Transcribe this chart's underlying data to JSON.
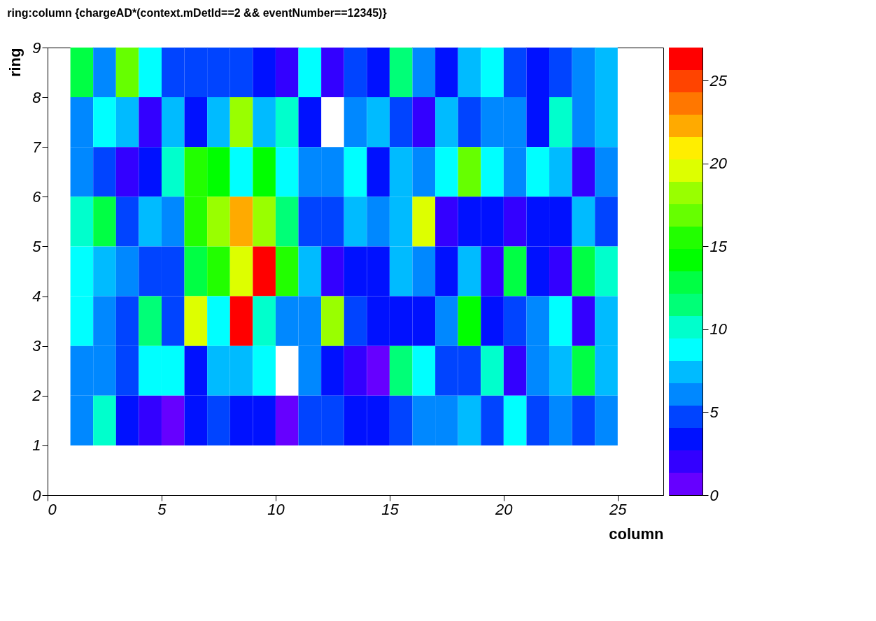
{
  "chart_data": {
    "type": "heatmap",
    "title": "ring:column {chargeAD*(context.mDetId==2 && eventNumber==12345)}",
    "xlabel": "column",
    "ylabel": "ring",
    "x": [
      1.5,
      2.5,
      3.5,
      4.5,
      5.5,
      6.5,
      7.5,
      8.5,
      9.5,
      10.5,
      11.5,
      12.5,
      13.5,
      14.5,
      15.5,
      16.5,
      17.5,
      18.5,
      19.5,
      20.5,
      21.5,
      22.5,
      23.5,
      24.5
    ],
    "y": [
      8.5,
      7.5,
      6.5,
      5.5,
      4.5,
      3.5,
      2.5,
      1.5
    ],
    "cells": [
      [
        13,
        6,
        17,
        9,
        5,
        5,
        5,
        5,
        3,
        2,
        9,
        2,
        5,
        3,
        11,
        6,
        3,
        7,
        9,
        5,
        3,
        5,
        6,
        7
      ],
      [
        6,
        9,
        7,
        2,
        7,
        3,
        7,
        18,
        7,
        10,
        3,
        null,
        6,
        7,
        5,
        2,
        7,
        5,
        6,
        6,
        3,
        10,
        6,
        7
      ],
      [
        6,
        5,
        2,
        3,
        10,
        15,
        14,
        9,
        14,
        9,
        6,
        6,
        9,
        3,
        7,
        6,
        9,
        17,
        9,
        6,
        9,
        7,
        2,
        6
      ],
      [
        10,
        13,
        5,
        7,
        6,
        15,
        18,
        22,
        18,
        11,
        5,
        5,
        7,
        6,
        7,
        20,
        2,
        3,
        3,
        2,
        3,
        3,
        7,
        5
      ],
      [
        9,
        7,
        6,
        5,
        5,
        13,
        15,
        20,
        27,
        15,
        7,
        2,
        3,
        3,
        7,
        6,
        3,
        7,
        2,
        13,
        3,
        2,
        13,
        10
      ],
      [
        9,
        6,
        5,
        11,
        5,
        20,
        9,
        26,
        10,
        6,
        6,
        18,
        5,
        3,
        3,
        3,
        6,
        14,
        3,
        5,
        6,
        9,
        2,
        7
      ],
      [
        6,
        6,
        5,
        9,
        9,
        3,
        7,
        7,
        9,
        null,
        6,
        3,
        2,
        1,
        11,
        9,
        5,
        5,
        10,
        2,
        6,
        7,
        13,
        7
      ],
      [
        6,
        10,
        3,
        2,
        1,
        3,
        5,
        3,
        3,
        1,
        5,
        5,
        3,
        3,
        5,
        6,
        6,
        7,
        5,
        9,
        5,
        6,
        5,
        6
      ]
    ],
    "xlim": [
      0,
      27
    ],
    "xticks": [
      0,
      5,
      10,
      15,
      20,
      25
    ],
    "ylim": [
      0,
      9
    ],
    "yticks": [
      0,
      1,
      2,
      3,
      4,
      5,
      6,
      7,
      8,
      9
    ],
    "clim": [
      0,
      27
    ],
    "cticks": [
      0,
      5,
      10,
      15,
      20,
      25
    ]
  }
}
